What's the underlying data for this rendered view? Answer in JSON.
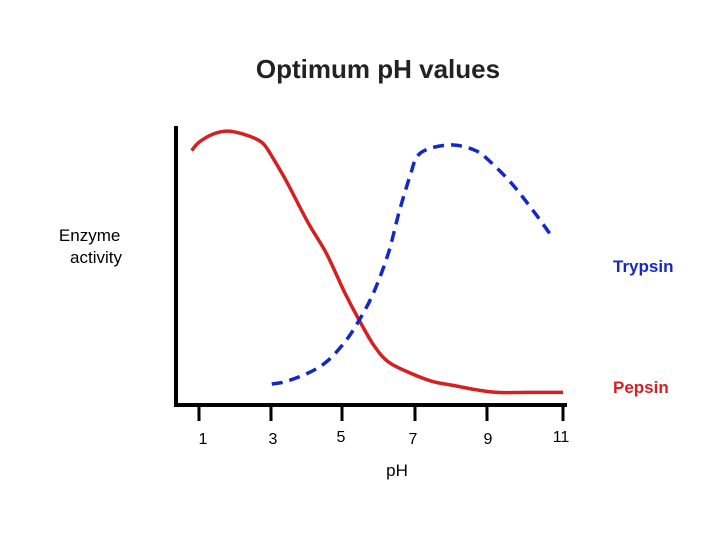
{
  "chart_data": {
    "type": "line",
    "title": "Optimum pH values",
    "xlabel": "pH",
    "ylabel_lines": [
      "Enzyme",
      "activity"
    ],
    "x_ticks": [
      "1",
      "3",
      "5",
      "7",
      "9",
      "11"
    ],
    "xlim": [
      1,
      11
    ],
    "ylim": [
      0,
      100
    ],
    "grid": false,
    "series": [
      {
        "name": "Pepsin",
        "color": "#d42020",
        "dash": "solid",
        "points": [
          [
            0.8,
            89
          ],
          [
            1.0,
            92
          ],
          [
            1.4,
            95
          ],
          [
            1.8,
            96
          ],
          [
            2.2,
            95
          ],
          [
            2.6,
            93
          ],
          [
            2.8,
            91
          ],
          [
            3.0,
            87
          ],
          [
            3.4,
            78
          ],
          [
            4.0,
            63
          ],
          [
            4.5,
            52
          ],
          [
            5.0,
            38
          ],
          [
            5.4,
            28
          ],
          [
            5.8,
            19
          ],
          [
            6.2,
            13
          ],
          [
            6.8,
            9
          ],
          [
            7.4,
            6
          ],
          [
            8.0,
            4.5
          ],
          [
            8.6,
            3
          ],
          [
            9.2,
            2
          ],
          [
            10.0,
            2
          ],
          [
            11.0,
            2
          ]
        ]
      },
      {
        "name": "Trypsin",
        "color": "#1428c8",
        "dash": "dashed",
        "points": [
          [
            3.0,
            5
          ],
          [
            3.4,
            6
          ],
          [
            4.0,
            9
          ],
          [
            4.5,
            13
          ],
          [
            5.0,
            20
          ],
          [
            5.4,
            28
          ],
          [
            5.8,
            38
          ],
          [
            6.2,
            52
          ],
          [
            6.5,
            67
          ],
          [
            6.8,
            80
          ],
          [
            7.0,
            87
          ],
          [
            7.4,
            90
          ],
          [
            8.0,
            91
          ],
          [
            8.6,
            89
          ],
          [
            9.0,
            85
          ],
          [
            9.6,
            77
          ],
          [
            10.2,
            67
          ],
          [
            10.7,
            58
          ]
        ]
      }
    ]
  }
}
